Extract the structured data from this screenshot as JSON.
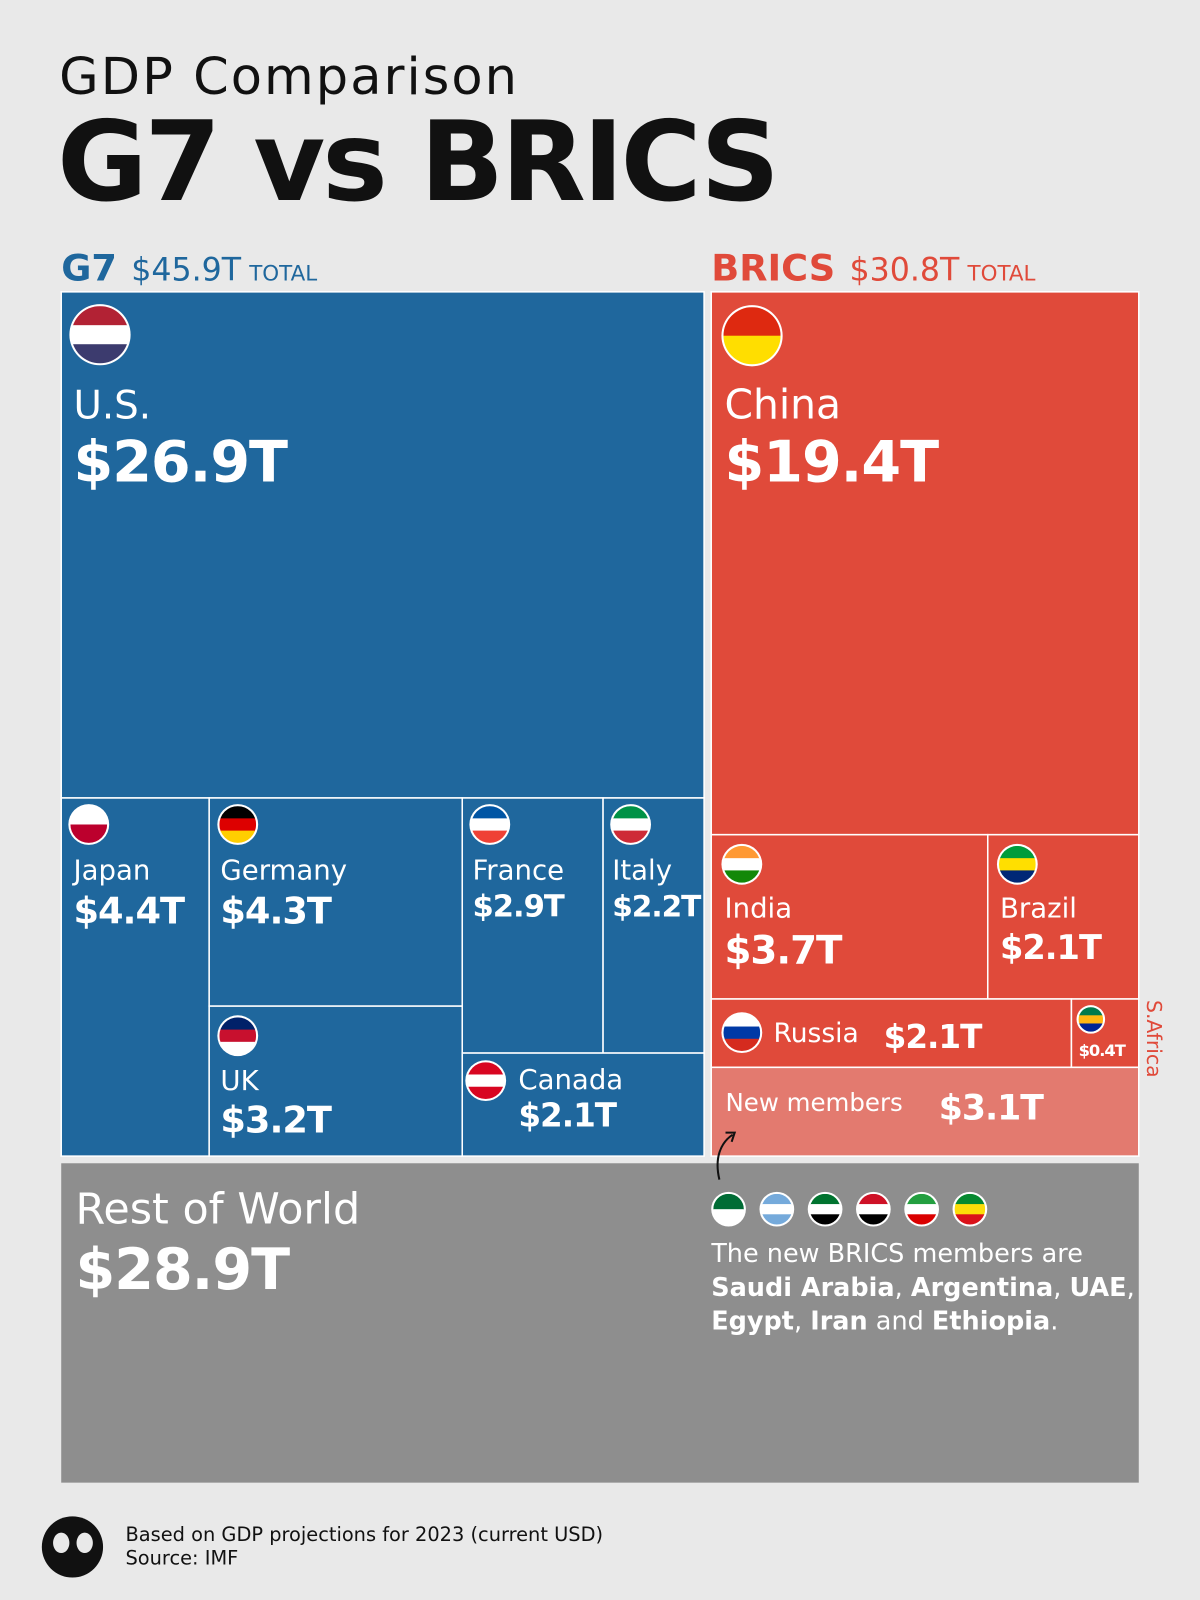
{
  "chart_data": {
    "type": "treemap",
    "title": "GDP Comparison",
    "subtitle": "G7 vs BRICS",
    "groups": [
      {
        "name": "G7",
        "total": 45.9,
        "total_label": "$45.9T",
        "total_word": "TOTAL",
        "color": "#1f679d",
        "categories": [
          "U.S.",
          "Japan",
          "Germany",
          "UK",
          "France",
          "Italy",
          "Canada"
        ],
        "values": [
          26.9,
          4.4,
          4.3,
          3.2,
          2.9,
          2.2,
          2.1
        ],
        "value_labels": [
          "$26.9T",
          "$4.4T",
          "$4.3T",
          "$3.2T",
          "$2.9T",
          "$2.2T",
          "$2.1T"
        ]
      },
      {
        "name": "BRICS",
        "total": 30.8,
        "total_label": "$30.8T",
        "total_word": "TOTAL",
        "color": "#e04a3a",
        "categories": [
          "China",
          "India",
          "Brazil",
          "Russia",
          "S.Africa",
          "New members"
        ],
        "values": [
          19.4,
          3.7,
          2.1,
          2.1,
          0.4,
          3.1
        ],
        "value_labels": [
          "$19.4T",
          "$3.7T",
          "$2.1T",
          "$2.1T",
          "$0.4T",
          "$3.1T"
        ]
      }
    ],
    "rest": {
      "name": "Rest of World",
      "value": 28.9,
      "value_label": "$28.9T",
      "color": "#8e8e8e"
    },
    "note": [
      "The new BRICS members are ",
      "Saudi Arabia",
      ", ",
      "Argentina",
      ", ",
      "UAE",
      ", ",
      "Egypt",
      ", ",
      "Iran",
      " and ",
      "Ethiopia",
      "."
    ],
    "footnote": [
      "Based on GDP projections for 2023 (current USD)",
      "Source: IMF"
    ]
  }
}
